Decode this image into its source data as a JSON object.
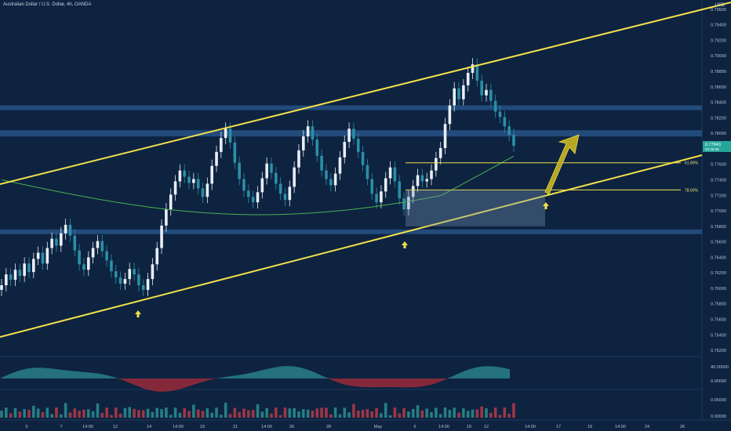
{
  "chart_data": {
    "type": "candlestick",
    "title": "Australian Dollar / U.S. Dollar, 4h, OANDA",
    "currency": "USD",
    "y_ticks": [
      "0.79600",
      "0.79400",
      "0.79200",
      "0.79000",
      "0.78800",
      "0.78600",
      "0.78400",
      "0.78200",
      "0.78000",
      "0.77800",
      "0.77600",
      "0.77400",
      "0.77200",
      "0.77000",
      "0.76800",
      "0.76600",
      "0.76400",
      "0.76200",
      "0.76000",
      "0.75800",
      "0.75600",
      "0.75400",
      "0.75200"
    ],
    "y_tick_values": [
      0.796,
      0.794,
      0.792,
      0.79,
      0.788,
      0.786,
      0.784,
      0.782,
      0.78,
      0.778,
      0.776,
      0.774,
      0.772,
      0.77,
      0.768,
      0.766,
      0.764,
      0.762,
      0.76,
      0.758,
      0.756,
      0.754,
      0.752
    ],
    "ylim": [
      0.7512,
      0.7972
    ],
    "x_ticks": [
      "5",
      "7",
      "14:00",
      "12",
      "14",
      "14:00",
      "19",
      "21",
      "14:00",
      "26",
      "28",
      "May",
      "5",
      "14:00",
      "10",
      "12",
      "14:00",
      "17",
      "19",
      "14:00",
      "24",
      "26"
    ],
    "price_badge": {
      "value": "0.77843",
      "sub": "03:46:39"
    },
    "fib_levels": [
      {
        "label": "61.80%",
        "value": 0.7762
      },
      {
        "label": "78.60%",
        "value": 0.7727
      }
    ],
    "ma_indicator_ticks": [
      "40.00000",
      "0.00000"
    ],
    "volume_ticks": [
      "0.05000",
      "0.00000"
    ],
    "close_series": [
      0.7604,
      0.7618,
      0.7611,
      0.7624,
      0.7616,
      0.7632,
      0.7621,
      0.7638,
      0.7646,
      0.7632,
      0.7652,
      0.7664,
      0.7655,
      0.7671,
      0.7682,
      0.7668,
      0.7649,
      0.7631,
      0.7624,
      0.764,
      0.7652,
      0.7661,
      0.7648,
      0.7636,
      0.7622,
      0.7614,
      0.7606,
      0.7612,
      0.7625,
      0.7618,
      0.7604,
      0.7598,
      0.7612,
      0.7631,
      0.7652,
      0.7681,
      0.7702,
      0.7721,
      0.7738,
      0.7752,
      0.7744,
      0.7736,
      0.7741,
      0.7729,
      0.7718,
      0.7735,
      0.7758,
      0.7776,
      0.7794,
      0.7806,
      0.7788,
      0.7762,
      0.7741,
      0.7726,
      0.7718,
      0.7711,
      0.7724,
      0.7742,
      0.7761,
      0.7749,
      0.7735,
      0.7722,
      0.7714,
      0.7731,
      0.7756,
      0.7778,
      0.7796,
      0.7809,
      0.7792,
      0.7771,
      0.7752,
      0.7741,
      0.7733,
      0.7748,
      0.7769,
      0.7789,
      0.7806,
      0.7793,
      0.7776,
      0.7759,
      0.7741,
      0.7722,
      0.7711,
      0.7725,
      0.7742,
      0.7756,
      0.7738,
      0.7716,
      0.7702,
      0.7718,
      0.7732,
      0.7746,
      0.7738,
      0.7741,
      0.7752,
      0.7768,
      0.7781,
      0.7812,
      0.7836,
      0.7858,
      0.7844,
      0.7862,
      0.7878,
      0.7889,
      0.7868,
      0.7849,
      0.7856,
      0.7842,
      0.7828,
      0.7821,
      0.7809,
      0.7798,
      0.7784
    ]
  }
}
